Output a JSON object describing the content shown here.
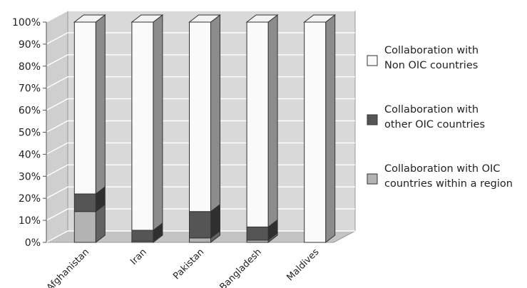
{
  "chart_data": {
    "type": "bar",
    "stacked": true,
    "percent": true,
    "three_d": true,
    "categories": [
      "Afghanistan",
      "Iran",
      "Pakistan",
      "Bangladesh",
      "Maldives"
    ],
    "series": [
      {
        "name": "Collaboration with OIC countries within a region",
        "legend_lines": [
          "Collaboration with OIC",
          "countries within a region"
        ],
        "color": "#b3b3b3",
        "values": [
          14,
          0.5,
          2,
          1,
          0
        ]
      },
      {
        "name": "Collaboration with other OIC countries",
        "legend_lines": [
          "Collaboration with",
          "other OIC countries"
        ],
        "color": "#555555",
        "values": [
          8,
          5,
          12,
          6,
          0
        ]
      },
      {
        "name": "Collaboration with Non OIC countries",
        "legend_lines": [
          "Collaboration with",
          "Non OIC countries"
        ],
        "color": "#fafafa",
        "values": [
          78,
          94.5,
          86,
          93,
          100
        ]
      }
    ],
    "ylim": [
      0,
      100
    ],
    "yticks": [
      "0%",
      "10%",
      "20%",
      "30%",
      "40%",
      "50%",
      "60%",
      "70%",
      "80%",
      "90%",
      "100%"
    ],
    "grid": true,
    "legend_position": "right",
    "wall_color": "#d9d9d9",
    "title": "",
    "xlabel": "",
    "ylabel": ""
  }
}
